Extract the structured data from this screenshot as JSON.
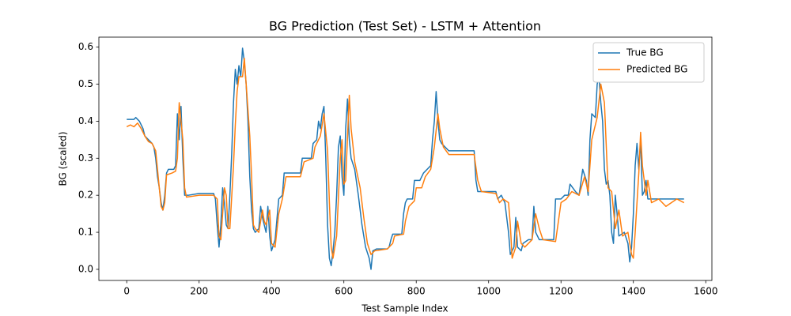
{
  "chart_data": {
    "type": "line",
    "title": "BG Prediction (Test Set) - LSTM + Attention",
    "xlabel": "Test Sample Index",
    "ylabel": "BG (scaled)",
    "xlim": [
      -77,
      1617
    ],
    "ylim": [
      -0.03,
      0.627
    ],
    "xticks": [
      0,
      200,
      400,
      600,
      800,
      1000,
      1200,
      1400,
      1600
    ],
    "yticks": [
      {
        "value": 0,
        "label": "0.0"
      },
      0.1,
      0.2,
      0.3,
      0.4,
      0.5,
      0.6
    ],
    "legend": "upper right",
    "series": [
      {
        "name": "True BG",
        "color": "#1f77b4",
        "x": [
          0,
          20,
          25,
          35,
          45,
          50,
          60,
          70,
          75,
          80,
          85,
          90,
          95,
          100,
          105,
          110,
          115,
          130,
          135,
          140,
          145,
          150,
          155,
          160,
          170,
          200,
          240,
          245,
          250,
          255,
          260,
          265,
          270,
          275,
          280,
          285,
          290,
          295,
          300,
          305,
          310,
          315,
          320,
          325,
          330,
          335,
          340,
          345,
          350,
          355,
          365,
          370,
          375,
          380,
          385,
          390,
          395,
          400,
          410,
          420,
          430,
          435,
          480,
          485,
          510,
          515,
          525,
          530,
          535,
          540,
          545,
          550,
          555,
          560,
          565,
          570,
          575,
          580,
          585,
          590,
          595,
          600,
          605,
          610,
          615,
          620,
          630,
          640,
          650,
          660,
          670,
          675,
          680,
          690,
          720,
          725,
          730,
          735,
          760,
          765,
          770,
          775,
          790,
          795,
          810,
          820,
          830,
          840,
          845,
          850,
          855,
          860,
          865,
          870,
          880,
          890,
          960,
          965,
          970,
          1000,
          1020,
          1025,
          1035,
          1045,
          1055,
          1060,
          1070,
          1075,
          1080,
          1090,
          1095,
          1110,
          1120,
          1125,
          1130,
          1140,
          1180,
          1185,
          1200,
          1210,
          1220,
          1225,
          1240,
          1250,
          1260,
          1270,
          1275,
          1280,
          1285,
          1295,
          1300,
          1305,
          1310,
          1315,
          1320,
          1325,
          1330,
          1335,
          1340,
          1345,
          1350,
          1355,
          1360,
          1375,
          1385,
          1390,
          1395,
          1400,
          1405,
          1410,
          1415,
          1420,
          1425,
          1430,
          1435,
          1440,
          1450,
          1540
        ],
        "values": [
          0.405,
          0.405,
          0.41,
          0.4,
          0.38,
          0.36,
          0.35,
          0.34,
          0.33,
          0.3,
          0.25,
          0.22,
          0.18,
          0.16,
          0.2,
          0.26,
          0.27,
          0.27,
          0.28,
          0.42,
          0.35,
          0.44,
          0.3,
          0.2,
          0.2,
          0.205,
          0.205,
          0.19,
          0.12,
          0.06,
          0.12,
          0.22,
          0.18,
          0.12,
          0.11,
          0.2,
          0.31,
          0.45,
          0.54,
          0.5,
          0.55,
          0.52,
          0.597,
          0.56,
          0.5,
          0.4,
          0.25,
          0.16,
          0.11,
          0.1,
          0.11,
          0.17,
          0.14,
          0.12,
          0.1,
          0.17,
          0.09,
          0.05,
          0.08,
          0.19,
          0.2,
          0.26,
          0.26,
          0.3,
          0.3,
          0.34,
          0.35,
          0.4,
          0.38,
          0.42,
          0.44,
          0.3,
          0.12,
          0.03,
          0.01,
          0.05,
          0.1,
          0.2,
          0.33,
          0.36,
          0.25,
          0.2,
          0.38,
          0.46,
          0.35,
          0.3,
          0.27,
          0.2,
          0.12,
          0.06,
          0.03,
          0.0,
          0.05,
          0.055,
          0.055,
          0.06,
          0.08,
          0.095,
          0.095,
          0.15,
          0.18,
          0.19,
          0.19,
          0.24,
          0.24,
          0.26,
          0.27,
          0.28,
          0.35,
          0.4,
          0.48,
          0.4,
          0.35,
          0.34,
          0.33,
          0.32,
          0.32,
          0.24,
          0.21,
          0.21,
          0.21,
          0.19,
          0.2,
          0.18,
          0.1,
          0.04,
          0.06,
          0.14,
          0.06,
          0.05,
          0.07,
          0.08,
          0.08,
          0.17,
          0.1,
          0.08,
          0.08,
          0.19,
          0.19,
          0.2,
          0.2,
          0.23,
          0.21,
          0.2,
          0.27,
          0.24,
          0.2,
          0.35,
          0.42,
          0.41,
          0.5,
          0.52,
          0.45,
          0.4,
          0.27,
          0.23,
          0.24,
          0.2,
          0.1,
          0.07,
          0.2,
          0.15,
          0.09,
          0.1,
          0.07,
          0.02,
          0.06,
          0.15,
          0.28,
          0.34,
          0.27,
          0.35,
          0.2,
          0.21,
          0.24,
          0.19,
          0.19,
          0.19
        ]
      },
      {
        "name": "Predicted BG",
        "color": "#ff7f0e",
        "x": [
          0,
          10,
          20,
          30,
          40,
          50,
          60,
          70,
          80,
          90,
          95,
          100,
          105,
          110,
          125,
          135,
          140,
          145,
          150,
          155,
          160,
          165,
          200,
          240,
          250,
          255,
          260,
          270,
          275,
          280,
          285,
          295,
          300,
          305,
          310,
          320,
          325,
          330,
          340,
          345,
          350,
          355,
          365,
          375,
          380,
          385,
          395,
          400,
          410,
          420,
          430,
          440,
          480,
          490,
          515,
          520,
          535,
          545,
          555,
          560,
          565,
          570,
          580,
          590,
          595,
          600,
          605,
          615,
          620,
          630,
          645,
          655,
          665,
          675,
          685,
          720,
          735,
          740,
          765,
          770,
          780,
          795,
          800,
          815,
          825,
          840,
          850,
          860,
          865,
          875,
          890,
          960,
          970,
          980,
          1020,
          1030,
          1040,
          1055,
          1060,
          1065,
          1075,
          1080,
          1090,
          1100,
          1120,
          1130,
          1140,
          1150,
          1185,
          1190,
          1200,
          1215,
          1230,
          1250,
          1265,
          1275,
          1285,
          1300,
          1310,
          1320,
          1330,
          1340,
          1350,
          1360,
          1370,
          1385,
          1395,
          1400,
          1405,
          1415,
          1420,
          1425,
          1435,
          1440,
          1450,
          1470,
          1490,
          1520,
          1540
        ],
        "values": [
          0.385,
          0.39,
          0.385,
          0.395,
          0.38,
          0.36,
          0.345,
          0.34,
          0.32,
          0.22,
          0.17,
          0.16,
          0.18,
          0.255,
          0.26,
          0.265,
          0.3,
          0.45,
          0.4,
          0.35,
          0.22,
          0.195,
          0.2,
          0.2,
          0.19,
          0.09,
          0.08,
          0.22,
          0.2,
          0.11,
          0.11,
          0.28,
          0.39,
          0.48,
          0.52,
          0.52,
          0.57,
          0.5,
          0.36,
          0.25,
          0.12,
          0.11,
          0.1,
          0.16,
          0.13,
          0.12,
          0.16,
          0.07,
          0.06,
          0.15,
          0.19,
          0.25,
          0.25,
          0.29,
          0.3,
          0.33,
          0.36,
          0.42,
          0.32,
          0.18,
          0.06,
          0.03,
          0.09,
          0.3,
          0.35,
          0.23,
          0.24,
          0.47,
          0.38,
          0.29,
          0.22,
          0.14,
          0.07,
          0.04,
          0.05,
          0.055,
          0.07,
          0.09,
          0.095,
          0.13,
          0.17,
          0.185,
          0.22,
          0.22,
          0.25,
          0.27,
          0.33,
          0.42,
          0.38,
          0.33,
          0.31,
          0.31,
          0.24,
          0.21,
          0.205,
          0.18,
          0.19,
          0.18,
          0.12,
          0.03,
          0.06,
          0.13,
          0.07,
          0.06,
          0.08,
          0.15,
          0.11,
          0.08,
          0.075,
          0.11,
          0.18,
          0.19,
          0.21,
          0.2,
          0.25,
          0.21,
          0.35,
          0.41,
          0.5,
          0.45,
          0.22,
          0.21,
          0.11,
          0.16,
          0.09,
          0.1,
          0.04,
          0.03,
          0.1,
          0.26,
          0.37,
          0.28,
          0.2,
          0.24,
          0.18,
          0.19,
          0.17,
          0.19,
          0.18
        ]
      }
    ]
  }
}
